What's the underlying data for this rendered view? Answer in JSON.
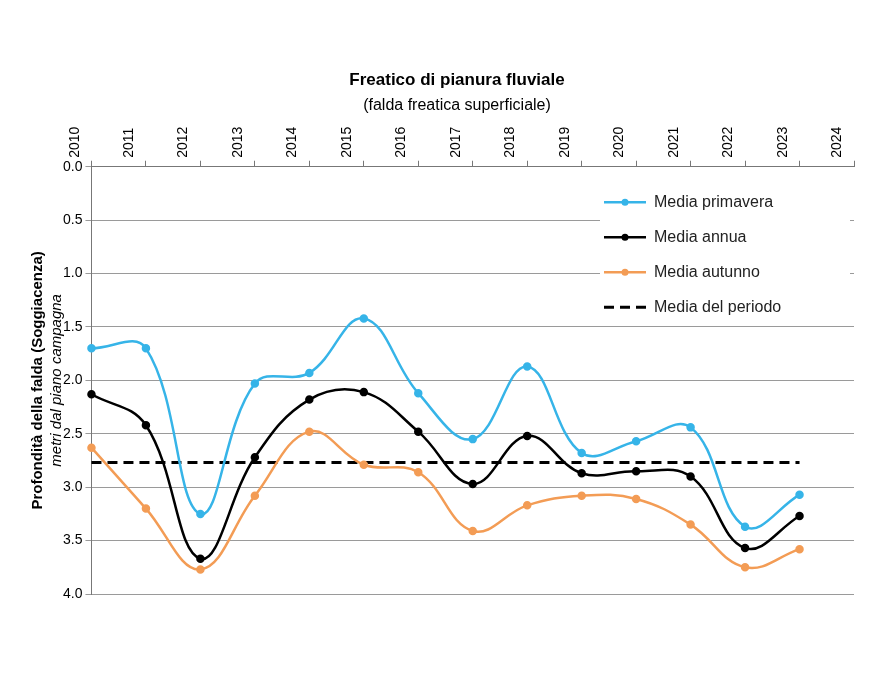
{
  "chart_data": {
    "type": "line",
    "title": "Freatico di pianura fluviale",
    "subtitle": "(falda freatica superficiale)",
    "ylabel": [
      "Profondità della falda (Soggiacenza)",
      "metri dal piano campagna"
    ],
    "categories": [
      "2010",
      "2011",
      "2012",
      "2013",
      "2014",
      "2015",
      "2016",
      "2017",
      "2018",
      "2019",
      "2020",
      "2021",
      "2022",
      "2023",
      "2024"
    ],
    "series": [
      {
        "name": "Media primavera",
        "color": "#36b4e8",
        "marker": "circle",
        "line_style": "solid",
        "values": [
          1.7,
          1.7,
          3.25,
          2.03,
          1.93,
          1.42,
          2.12,
          2.55,
          1.87,
          2.68,
          2.57,
          2.44,
          3.37,
          3.07,
          null
        ]
      },
      {
        "name": "Media annua",
        "color": "#000000",
        "marker": "circle",
        "line_style": "solid",
        "values": [
          2.13,
          2.42,
          3.67,
          2.72,
          2.18,
          2.11,
          2.48,
          2.97,
          2.52,
          2.87,
          2.85,
          2.9,
          3.57,
          3.27,
          null
        ]
      },
      {
        "name": "Media autunno",
        "color": "#f39c55",
        "marker": "circle",
        "line_style": "solid",
        "values": [
          2.63,
          3.2,
          3.77,
          3.08,
          2.48,
          2.79,
          2.86,
          3.41,
          3.17,
          3.08,
          3.11,
          3.35,
          3.75,
          3.58,
          null
        ]
      },
      {
        "name": "Media del periodo",
        "color": "#000000",
        "marker": "none",
        "line_style": "dashed",
        "values": [
          2.77,
          2.77,
          2.77,
          2.77,
          2.77,
          2.77,
          2.77,
          2.77,
          2.77,
          2.77,
          2.77,
          2.77,
          2.77,
          2.77,
          null
        ]
      }
    ],
    "ylim": [
      0,
      4
    ],
    "yticks": [
      {
        "value": 0,
        "label": "0.0"
      },
      0.5,
      {
        "value": 1,
        "label": "1.0"
      },
      1.5,
      {
        "value": 2,
        "label": "2.0"
      },
      2.5,
      {
        "value": 3,
        "label": "3.0"
      },
      3.5,
      {
        "value": 4,
        "label": "4.0"
      }
    ],
    "grid": true,
    "legend": "upper right"
  }
}
